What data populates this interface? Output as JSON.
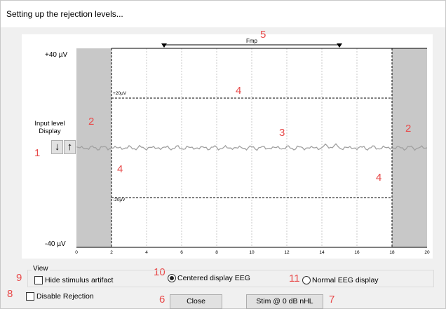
{
  "window": {
    "title": "Setting up the rejection levels..."
  },
  "plot": {
    "y_top_label": "+40 µV",
    "y_bottom_label": "-40 µV",
    "upper_level_label": "+20µV",
    "lower_level_label": "-20µV",
    "range_label": "Fmp",
    "x_ticks": [
      "0",
      "2",
      "4",
      "6",
      "8",
      "10",
      "12",
      "14",
      "16",
      "18",
      "20"
    ],
    "x_range": [
      0,
      20
    ],
    "y_range": [
      -40,
      40
    ],
    "rejection_levels": [
      20,
      -20
    ],
    "rejection_window": [
      2,
      18
    ],
    "fmp_range": [
      5,
      15
    ]
  },
  "input_level": {
    "label_line1": "Input level",
    "label_line2": "Display",
    "down_label": "↓",
    "up_label": "↑"
  },
  "markers": {
    "m1": "1",
    "m2a": "2",
    "m2b": "2",
    "m3": "3",
    "m4a": "4",
    "m4b": "4",
    "m4c": "4",
    "m5": "5",
    "m6": "6",
    "m7": "7",
    "m8": "8",
    "m9": "9",
    "m10": "10",
    "m11": "11"
  },
  "view": {
    "legend": "View",
    "hide_artifact_label": "Hide stimulus artifact",
    "hide_artifact_checked": false,
    "centered_label": "Centered display EEG",
    "centered_selected": true,
    "normal_label": "Normal EEG display",
    "normal_selected": false
  },
  "disable_rejection": {
    "label": "Disable Rejection",
    "checked": false
  },
  "buttons": {
    "close": "Close",
    "stim": "Stim @ 0 dB nHL"
  },
  "colors": {
    "marker": "#e84a4a",
    "shade": "#c8c8c8",
    "trace": "#a0a0a0"
  }
}
